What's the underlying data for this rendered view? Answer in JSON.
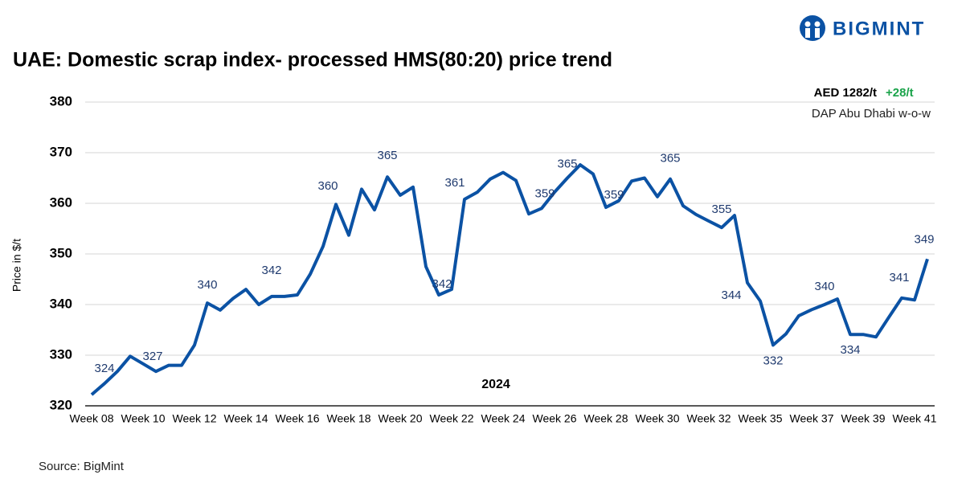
{
  "chart_data": {
    "type": "line",
    "brand": "BIGMINT",
    "title": "UAE: Domestic scrap index- processed HMS(80:20) price trend",
    "price": "AED 1282/t",
    "change": "+28/t",
    "basis": "DAP Abu Dhabi w-o-w",
    "period": "2024",
    "y_label": "Price in $/t",
    "source": "Source: BigMint",
    "categories": [
      "Week 08",
      null,
      null,
      null,
      "Week 10",
      null,
      null,
      null,
      "Week 12",
      null,
      null,
      null,
      "Week 14",
      null,
      null,
      null,
      "Week 16",
      null,
      null,
      null,
      "Week 18",
      null,
      null,
      null,
      "Week 20",
      null,
      null,
      null,
      "Week 22",
      null,
      null,
      null,
      "Week 24",
      null,
      null,
      null,
      "Week 26",
      null,
      null,
      null,
      "Week 28",
      null,
      null,
      null,
      "Week 30",
      null,
      null,
      null,
      "Week 32",
      null,
      null,
      null,
      "Week 35",
      null,
      null,
      null,
      "Week 37",
      null,
      null,
      null,
      "Week 39",
      null,
      null,
      null,
      "Week 41",
      null
    ],
    "series": [
      {
        "name": "Price",
        "color": "#0b52a4",
        "values": [
          322.2,
          324.4,
          326.8,
          329.8,
          328.3,
          326.8,
          328,
          328,
          332,
          340.3,
          338.9,
          341.2,
          343,
          340,
          341.6,
          341.6,
          341.9,
          346,
          351.5,
          359.8,
          353.7,
          362.8,
          358.7,
          365.2,
          361.6,
          363.2,
          347.5,
          341.9,
          343,
          360.8,
          362.2,
          364.8,
          366.1,
          364.5,
          357.9,
          359,
          362.2,
          365,
          367.6,
          365.8,
          359.2,
          360.5,
          364.4,
          365,
          361.3,
          364.8,
          359.5,
          357.8,
          356.5,
          355.2,
          357.6,
          344.3,
          340.7,
          332,
          334.2,
          337.8,
          339,
          340,
          341.1,
          334.1,
          334.1,
          333.6,
          337.5,
          341.3,
          340.9,
          349
        ],
        "value_labels": [
          null,
          "324",
          null,
          null,
          null,
          "327",
          null,
          null,
          null,
          "340",
          null,
          null,
          null,
          null,
          "342",
          null,
          null,
          null,
          null,
          "360",
          null,
          null,
          null,
          "365",
          null,
          null,
          null,
          "342",
          null,
          "361",
          null,
          null,
          null,
          null,
          null,
          "359",
          null,
          "365",
          null,
          null,
          "359",
          null,
          null,
          null,
          null,
          "365",
          null,
          null,
          null,
          "355",
          null,
          "344",
          null,
          "332",
          null,
          null,
          null,
          "340",
          null,
          "334",
          null,
          null,
          null,
          "341",
          null,
          "349"
        ]
      }
    ],
    "ylim": [
      320,
      380
    ],
    "yticks": [
      320,
      330,
      340,
      350,
      360,
      370,
      380
    ],
    "grid": true
  }
}
